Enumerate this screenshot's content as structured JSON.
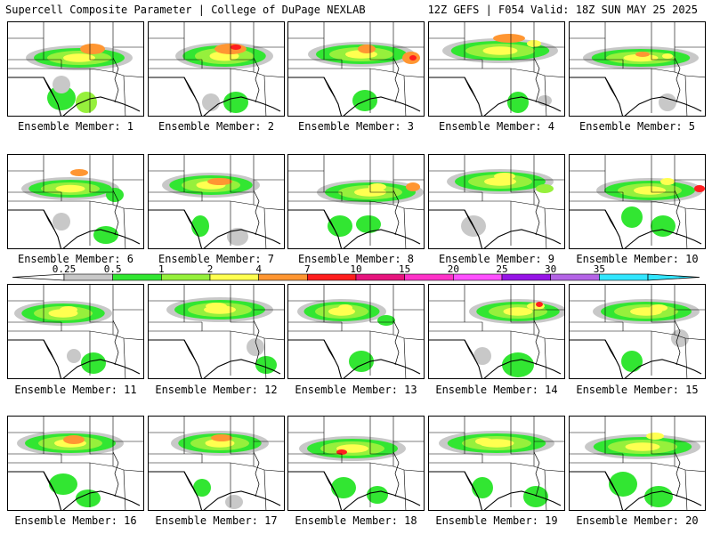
{
  "header": {
    "left_title": "Supercell Composite Parameter | College of DuPage NEXLAB",
    "right_title": "12Z GEFS | F054 Valid: 18Z SUN MAY 25 2025"
  },
  "panels": [
    {
      "label": "Ensemble Member: 1"
    },
    {
      "label": "Ensemble Member: 2"
    },
    {
      "label": "Ensemble Member: 3"
    },
    {
      "label": "Ensemble Member: 4"
    },
    {
      "label": "Ensemble Member: 5"
    },
    {
      "label": "Ensemble Member: 6"
    },
    {
      "label": "Ensemble Member: 7"
    },
    {
      "label": "Ensemble Member: 8"
    },
    {
      "label": "Ensemble Member: 9"
    },
    {
      "label": "Ensemble Member: 10"
    },
    {
      "label": "Ensemble Member: 11"
    },
    {
      "label": "Ensemble Member: 12"
    },
    {
      "label": "Ensemble Member: 13"
    },
    {
      "label": "Ensemble Member: 14"
    },
    {
      "label": "Ensemble Member: 15"
    },
    {
      "label": "Ensemble Member: 16"
    },
    {
      "label": "Ensemble Member: 17"
    },
    {
      "label": "Ensemble Member: 18"
    },
    {
      "label": "Ensemble Member: 19"
    },
    {
      "label": "Ensemble Member: 20"
    }
  ],
  "colorbar": {
    "ticks": [
      "0.25",
      "0.5",
      "1",
      "2",
      "4",
      "7",
      "10",
      "15",
      "20",
      "25",
      "30",
      "35"
    ],
    "colors": [
      "#c8c8c8",
      "#32e632",
      "#96f03c",
      "#ffff50",
      "#ff9632",
      "#ff1e1e",
      "#e6147d",
      "#ff32c8",
      "#ff50ff",
      "#9614e6",
      "#b464e6",
      "#32e6ff"
    ]
  },
  "colors": {
    "light": "#c8c8c8",
    "green": "#32e632",
    "yellowgreen": "#96f03c",
    "yellow": "#ffff50",
    "orange": "#ff9632",
    "red": "#ff1e1e"
  }
}
